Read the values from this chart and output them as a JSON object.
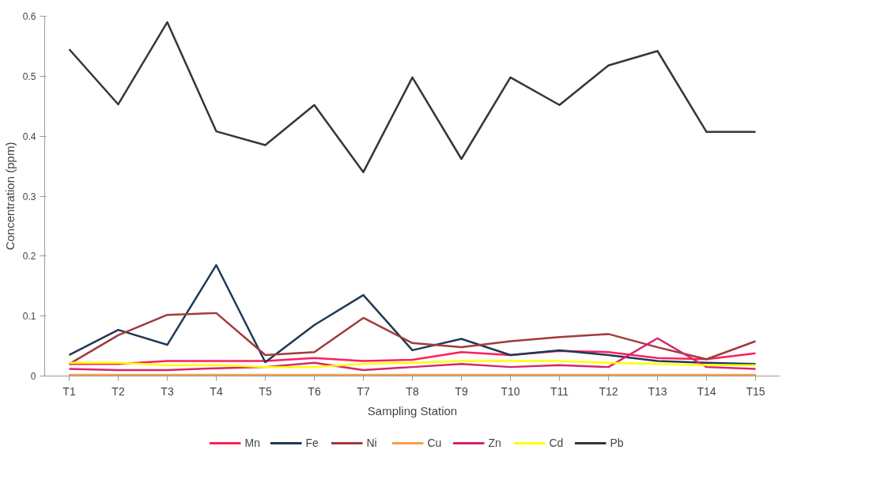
{
  "chart_data": {
    "type": "line",
    "xlabel": "Sampling Station",
    "ylabel": "Concentration (ppm)",
    "categories": [
      "T1",
      "T2",
      "T3",
      "T4",
      "T5",
      "T6",
      "T7",
      "T8",
      "T9",
      "T10",
      "T11",
      "T12",
      "T13",
      "T14",
      "T15"
    ],
    "ylim": [
      0,
      0.6
    ],
    "yticks": [
      {
        "value": 0,
        "label": "0"
      },
      0.1,
      0.2,
      0.3,
      0.4,
      0.5,
      0.6
    ],
    "grid": false,
    "legend": "bottom",
    "marker": "none",
    "line_style": "solid",
    "series": [
      {
        "name": "Mn",
        "color": "#ff1f5a",
        "values": [
          0.02,
          0.02,
          0.025,
          0.025,
          0.025,
          0.03,
          0.025,
          0.027,
          0.04,
          0.035,
          0.042,
          0.04,
          0.03,
          0.028,
          0.038
        ]
      },
      {
        "name": "Fe",
        "color": "#1f3a56",
        "values": [
          0.035,
          0.077,
          0.052,
          0.185,
          0.023,
          0.085,
          0.135,
          0.043,
          0.062,
          0.035,
          0.043,
          0.035,
          0.025,
          0.022,
          0.02
        ]
      },
      {
        "name": "Ni",
        "color": "#a33a3a",
        "values": [
          0.02,
          0.068,
          0.102,
          0.105,
          0.035,
          0.04,
          0.097,
          0.055,
          0.048,
          0.058,
          0.065,
          0.07,
          0.048,
          0.028,
          0.058
        ]
      },
      {
        "name": "Cu",
        "color": "#f5a04a",
        "values": [
          0.002,
          0.002,
          0.002,
          0.002,
          0.002,
          0.002,
          0.002,
          0.002,
          0.002,
          0.002,
          0.002,
          0.002,
          0.002,
          0.002,
          0.002
        ]
      },
      {
        "name": "Zn",
        "color": "#d8246e",
        "values": [
          0.012,
          0.01,
          0.01,
          0.013,
          0.015,
          0.022,
          0.01,
          0.015,
          0.02,
          0.015,
          0.018,
          0.015,
          0.063,
          0.015,
          0.012
        ]
      },
      {
        "name": "Cd",
        "color": "#ffff00",
        "values": [
          0.022,
          0.022,
          0.018,
          0.018,
          0.015,
          0.015,
          0.02,
          0.022,
          0.025,
          0.025,
          0.025,
          0.022,
          0.02,
          0.018,
          0.018
        ]
      },
      {
        "name": "Pb",
        "color": "#3a3436",
        "values": [
          0.545,
          0.453,
          0.59,
          0.408,
          0.385,
          0.452,
          0.34,
          0.498,
          0.362,
          0.498,
          0.452,
          0.518,
          0.542,
          0.407,
          0.407
        ]
      }
    ]
  }
}
